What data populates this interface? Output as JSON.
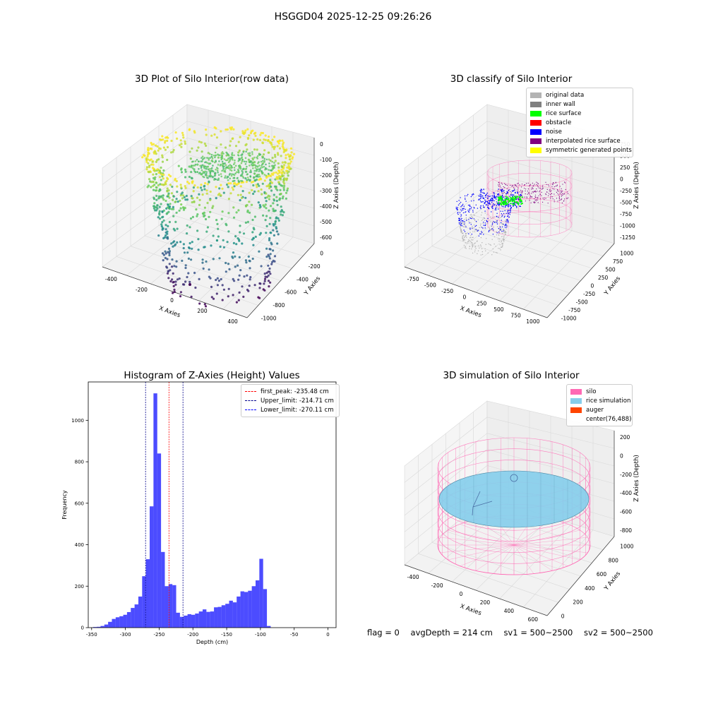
{
  "figure": {
    "title": "HSGGD04 2025-12-25 09:26:26"
  },
  "chart_data": [
    {
      "id": "raw",
      "type": "scatter",
      "title": "3D Plot of Silo Interior(row data)",
      "xlabel": "X Axies",
      "ylabel": "Y Axies",
      "zlabel": "Z Axies (Depth)",
      "x_ticks": [
        "-400",
        "-200",
        "0",
        "200",
        "400"
      ],
      "y_ticks": [
        "-1000",
        "-800",
        "-600",
        "-400",
        "-200",
        "0"
      ],
      "z_ticks": [
        "-600",
        "-500",
        "-400",
        "-300",
        "-200",
        "-100",
        "0"
      ],
      "colormap": [
        "#440154",
        "#3b528b",
        "#21918c",
        "#5ec962",
        "#fde725"
      ]
    },
    {
      "id": "classify",
      "type": "scatter",
      "title": "3D classify of Silo Interior",
      "xlabel": "X Axies",
      "ylabel": "Y Axies",
      "zlabel": "Z Axies (Depth)",
      "x_ticks": [
        "-750",
        "-500",
        "-250",
        "0",
        "250",
        "500",
        "750",
        "1000"
      ],
      "y_ticks": [
        "-1000",
        "-750",
        "-500",
        "-250",
        "0",
        "250",
        "500",
        "750",
        "1000"
      ],
      "z_ticks": [
        "-1250",
        "-1000",
        "-750",
        "-500",
        "-250",
        "0",
        "250",
        "500",
        "750"
      ],
      "legend": [
        {
          "label": "original data",
          "color": "#b3b3b3"
        },
        {
          "label": "inner wall",
          "color": "#808080"
        },
        {
          "label": "rice surface",
          "color": "#00ff00"
        },
        {
          "label": "obstacle",
          "color": "#ff0000"
        },
        {
          "label": "noise",
          "color": "#0000ff"
        },
        {
          "label": "interpolated rice surface",
          "color": "#800080"
        },
        {
          "label": "symmetric generated points",
          "color": "#ffff00"
        }
      ],
      "colors": {
        "silo": "#ff69b4"
      }
    },
    {
      "id": "histogram",
      "type": "bar",
      "title": "Histogram of Z-Axies (Height) Values",
      "xlabel": "Depth (cm)",
      "ylabel": "Frequency",
      "xlim": [
        -355,
        12
      ],
      "ylim": [
        0,
        1185
      ],
      "x_ticks": [
        -350,
        -300,
        -250,
        -200,
        -150,
        -100,
        -50,
        0
      ],
      "y_ticks": [
        0,
        200,
        400,
        600,
        800,
        1000
      ],
      "bin_start": -348,
      "bin_width": 5.6,
      "values": [
        3,
        4,
        8,
        15,
        28,
        42,
        50,
        55,
        62,
        75,
        95,
        112,
        150,
        248,
        330,
        585,
        1130,
        840,
        365,
        200,
        210,
        205,
        72,
        52,
        58,
        65,
        62,
        68,
        78,
        88,
        76,
        78,
        98,
        100,
        108,
        115,
        130,
        122,
        150,
        175,
        172,
        178,
        200,
        228,
        332,
        186,
        8
      ],
      "bar_color": "#0000ff",
      "legend": [
        {
          "label": "first_peak: -235.48 cm",
          "value": -235.48,
          "color": "#ff0000"
        },
        {
          "label": "Upper_limit: -214.71 cm",
          "value": -214.71,
          "color": "#00008b"
        },
        {
          "label": "Lower_limit: -270.11 cm",
          "value": -270.11,
          "color": "#00008b"
        }
      ]
    },
    {
      "id": "simulation",
      "type": "scatter",
      "title": "3D simulation of Silo Interior",
      "xlabel": "X Axies",
      "ylabel": "Y Axies",
      "zlabel": "Z Axies (Depth)",
      "x_ticks": [
        "-400",
        "-200",
        "0",
        "200",
        "400",
        "600"
      ],
      "y_ticks": [
        "0",
        "200",
        "400",
        "600",
        "800",
        "1000"
      ],
      "z_ticks": [
        "-800",
        "-600",
        "-400",
        "-200",
        "0",
        "200"
      ],
      "legend": [
        {
          "label": "silo",
          "color": "#ff69b4"
        },
        {
          "label": "rice simulation",
          "color": "#87ceeb"
        },
        {
          "label": "auger",
          "color": "#ff4500"
        },
        {
          "label": "center(76,488)",
          "color": ""
        }
      ]
    }
  ],
  "status": {
    "flag": "flag = 0",
    "avg_depth": "avgDepth = 214 cm",
    "sv1": "sv1 = 500~2500",
    "sv2": "sv2 = 500~2500"
  }
}
